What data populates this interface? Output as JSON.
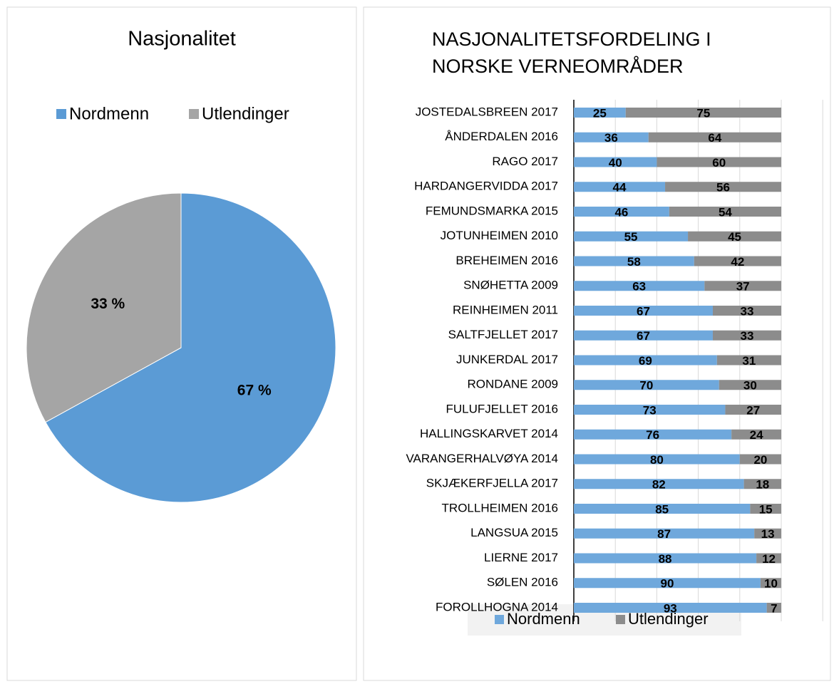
{
  "chart_data": [
    {
      "type": "pie",
      "title": "Nasjonalitet",
      "categories": [
        "Nordmenn",
        "Utlendinger"
      ],
      "values": [
        67,
        33
      ],
      "value_labels": [
        "67 %",
        "33 %"
      ],
      "colors": [
        "#5b9bd5",
        "#a5a5a5"
      ],
      "legend": "top"
    },
    {
      "type": "stacked-barh",
      "title": "NASJONALITETSFORDELING I NORSKE VERNEOMRÅDER",
      "categories": [
        "JOSTEDALSBREEN 2017",
        "ÅNDERDALEN 2016",
        "RAGO 2017",
        "HARDANGERVIDDA 2017",
        "FEMUNDSMARKA 2015",
        "JOTUNHEIMEN 2010",
        "BREHEIMEN 2016",
        "SNØHETTA 2009",
        "REINHEIMEN 2011",
        "SALTFJELLET 2017",
        "JUNKERDAL 2017",
        "RONDANE 2009",
        "FULUFJELLET 2016",
        "HALLINGSKARVET 2014",
        "VARANGERHALVØYA 2014",
        "SKJÆKERFJELLA 2017",
        "TROLLHEIMEN 2016",
        "LANGSUA 2015",
        "LIERNE 2017",
        "SØLEN 2016",
        "FOROLLHOGNA 2014"
      ],
      "series": [
        {
          "name": "Nordmenn",
          "color": "#6fa8dc",
          "values": [
            25,
            36,
            40,
            44,
            46,
            55,
            58,
            63,
            67,
            67,
            69,
            70,
            73,
            76,
            80,
            82,
            85,
            87,
            88,
            90,
            93
          ]
        },
        {
          "name": "Utlendinger",
          "color": "#8c8c8c",
          "values": [
            75,
            64,
            60,
            56,
            54,
            45,
            42,
            37,
            33,
            33,
            31,
            30,
            27,
            24,
            20,
            18,
            15,
            13,
            12,
            10,
            7
          ]
        }
      ],
      "xlim": [
        0,
        120
      ],
      "xticks": [
        0,
        20,
        40,
        60,
        80,
        100,
        120
      ],
      "grid": true,
      "legend": "bottom"
    }
  ]
}
